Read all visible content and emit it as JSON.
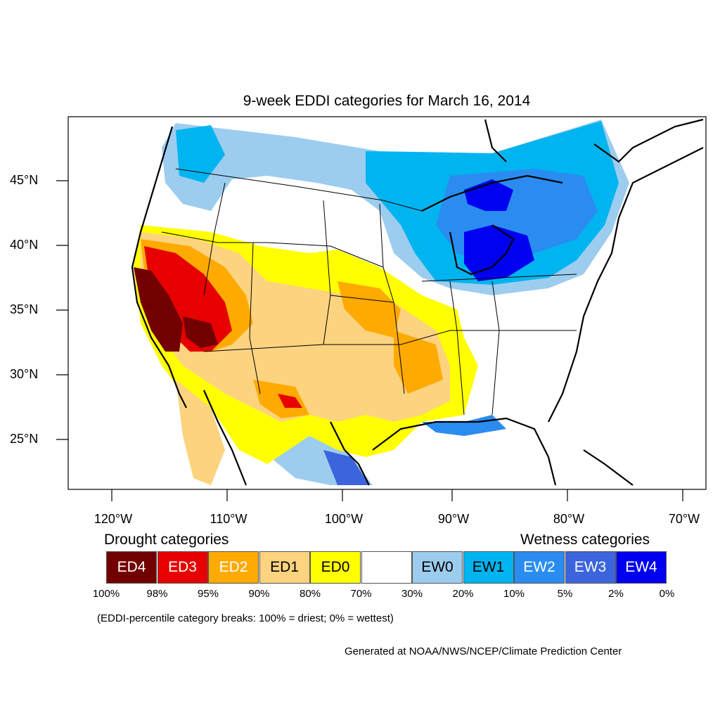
{
  "title": "9-week EDDI categories for March 16, 2014",
  "lat_ticks": [
    "45°N",
    "40°N",
    "35°N",
    "30°N",
    "25°N"
  ],
  "lon_ticks": [
    "120°W",
    "110°W",
    "100°W",
    "90°W",
    "80°W",
    "70°W"
  ],
  "legend": {
    "drought_heading": "Drought categories",
    "wetness_heading": "Wetness categories",
    "categories": [
      {
        "label": "ED4",
        "color": "#730000",
        "text_color": "#ffffff"
      },
      {
        "label": "ED3",
        "color": "#e60000",
        "text_color": "#ffffff"
      },
      {
        "label": "ED2",
        "color": "#ffaa00",
        "text_color": "#ffffff"
      },
      {
        "label": "ED1",
        "color": "#fcd37f",
        "text_color": "#000000"
      },
      {
        "label": "ED0",
        "color": "#ffff00",
        "text_color": "#000000"
      },
      {
        "label": "",
        "color": "#ffffff",
        "text_color": "#000000"
      },
      {
        "label": "EW0",
        "color": "#9ccdef",
        "text_color": "#000000"
      },
      {
        "label": "EW1",
        "color": "#00b4f0",
        "text_color": "#000000"
      },
      {
        "label": "EW2",
        "color": "#2a8cf0",
        "text_color": "#ffffff"
      },
      {
        "label": "EW3",
        "color": "#3c64dc",
        "text_color": "#ffffff"
      },
      {
        "label": "EW4",
        "color": "#0000f0",
        "text_color": "#ffffff"
      }
    ],
    "percent_breaks": [
      "100%",
      "98%",
      "95%",
      "90%",
      "80%",
      "70%",
      "30%",
      "20%",
      "10%",
      "5%",
      "2%",
      "0%"
    ]
  },
  "note": "(EDDI-percentile category breaks: 100% = driest; 0% = wettest)",
  "credit": "Generated at NOAA/NWS/NCEP/Climate Prediction Center"
}
